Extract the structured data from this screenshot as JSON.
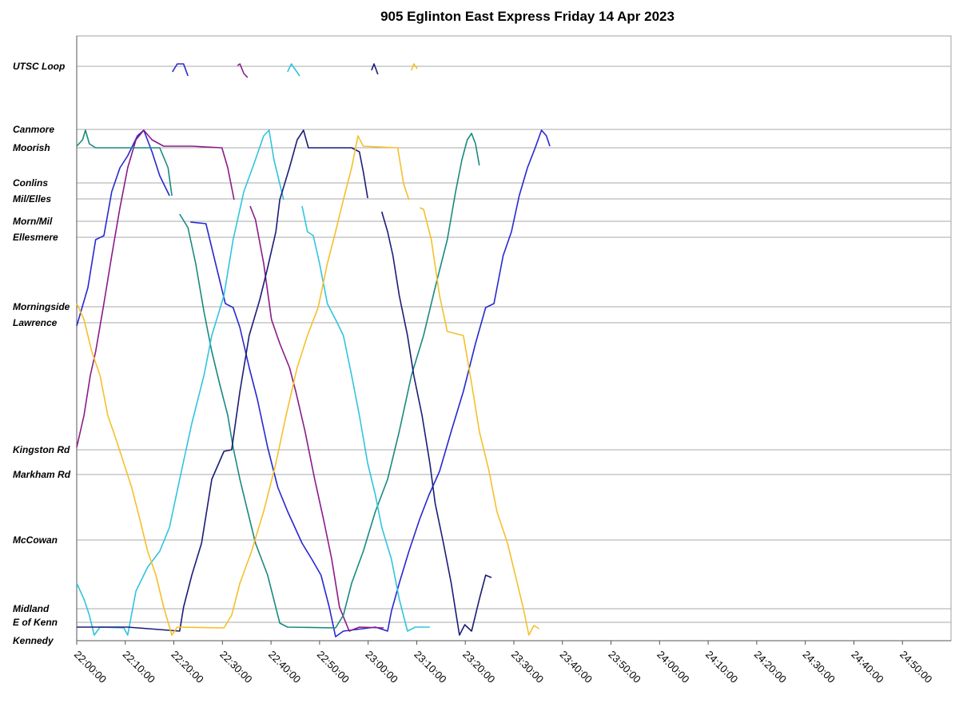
{
  "chart_data": {
    "type": "line",
    "title": "905 Eglinton East Express Friday 14 Apr 2023",
    "xlim": [
      1320,
      1500
    ],
    "xticks": [
      {
        "value": 1320,
        "label": "22:00:00"
      },
      {
        "value": 1330,
        "label": "22:10:00"
      },
      {
        "value": 1340,
        "label": "22:20:00"
      },
      {
        "value": 1350,
        "label": "22:30:00"
      },
      {
        "value": 1360,
        "label": "22:40:00"
      },
      {
        "value": 1370,
        "label": "22:50:00"
      },
      {
        "value": 1380,
        "label": "23:00:00"
      },
      {
        "value": 1390,
        "label": "23:10:00"
      },
      {
        "value": 1400,
        "label": "23:20:00"
      },
      {
        "value": 1410,
        "label": "23:30:00"
      },
      {
        "value": 1420,
        "label": "23:40:00"
      },
      {
        "value": 1430,
        "label": "23:50:00"
      },
      {
        "value": 1440,
        "label": "24:00:00"
      },
      {
        "value": 1450,
        "label": "24:10:00"
      },
      {
        "value": 1460,
        "label": "24:20:00"
      },
      {
        "value": 1470,
        "label": "24:30:00"
      },
      {
        "value": 1480,
        "label": "24:40:00"
      },
      {
        "value": 1490,
        "label": "24:50:00"
      }
    ],
    "ylim": [
      0,
      757
    ],
    "yticks": [
      {
        "value": 719,
        "label": "UTSC Loop"
      },
      {
        "value": 640,
        "label": "Canmore"
      },
      {
        "value": 617,
        "label": "Moorish"
      },
      {
        "value": 573,
        "label": "Conlins"
      },
      {
        "value": 553,
        "label": "Mil/Elles"
      },
      {
        "value": 525,
        "label": "Morn/Mil"
      },
      {
        "value": 505,
        "label": "Ellesmere"
      },
      {
        "value": 418,
        "label": "Morningside"
      },
      {
        "value": 398,
        "label": "Lawrence"
      },
      {
        "value": 239,
        "label": "Kingston Rd"
      },
      {
        "value": 208,
        "label": "Markham Rd"
      },
      {
        "value": 126,
        "label": "McCowan"
      },
      {
        "value": 40,
        "label": "Midland"
      },
      {
        "value": 23,
        "label": "E of Kenn"
      },
      {
        "value": 0,
        "label": "Kennedy"
      }
    ],
    "grid": true,
    "series": [
      {
        "color": "#2828d0",
        "x": [
          1320,
          1322.3,
          1323.9,
          1325.6,
          1327.2,
          1328.9,
          1330.5,
          1332.5,
          1333.8,
          1335.5,
          1337.1,
          1339.1,
          null,
          1339.7,
          1340.7,
          1342,
          1342.9,
          null,
          1343.4,
          1346.6,
          1348.6,
          1350.6,
          1352.2,
          1353.6,
          1355.5,
          1357.2,
          1359.3,
          1361.4,
          1363.4,
          1366.4,
          1368.4,
          1370.3,
          1372,
          1373.3,
          1374.9,
          1381.5,
          1384,
          1384.8,
          1386.4,
          1388.4,
          1390.6,
          1392.5,
          1394.7,
          1397.1,
          1399.6,
          1402.1,
          1404.2,
          1405.9,
          1407.8,
          1409.5,
          1411.1,
          1412.8,
          1414.4,
          1415.7,
          1416.7,
          1417.4
        ],
        "values": [
          394,
          442,
          502,
          507,
          562,
          592,
          607,
          632,
          639,
          612,
          582,
          557,
          null,
          712,
          722,
          722,
          707,
          null,
          524,
          522,
          472,
          422,
          417,
          392,
          342,
          302,
          242,
          192,
          162,
          122,
          102,
          82,
          42,
          5,
          12,
          17,
          12,
          37,
          72,
          112,
          152,
          182,
          212,
          262,
          312,
          372,
          417,
          422,
          482,
          512,
          557,
          592,
          617,
          639,
          632,
          619
        ]
      },
      {
        "color": "#8a1a8a",
        "x": [
          1320,
          1321.5,
          1322.8,
          1323.9,
          1325.6,
          1327.2,
          1328.9,
          1330.5,
          1332.2,
          1333.8,
          1335.5,
          1337.9,
          1343.7,
          1349.9,
          1351.1,
          1352.4,
          null,
          1353.1,
          1353.6,
          1354.4,
          1355.2,
          null,
          1355.7,
          1356.8,
          1358.5,
          1360.1,
          1361.8,
          1363.8,
          1365.1,
          1367,
          1369,
          1370.8,
          1372.5,
          1374.1,
          1376.1,
          1378.2,
          1383.2
        ],
        "values": [
          242,
          282,
          332,
          362,
          422,
          482,
          542,
          592,
          627,
          639,
          627,
          619,
          619,
          617,
          592,
          552,
          null,
          720,
          722,
          710,
          705,
          null,
          544,
          527,
          472,
          402,
          372,
          342,
          312,
          262,
          202,
          152,
          102,
          42,
          12,
          17,
          16
        ]
      },
      {
        "color": "#1a8a80",
        "x": [
          1320,
          1321.2,
          1321.8,
          1322.6,
          1323.9,
          1337.1,
          1338.8,
          1339.6,
          null,
          1341.2,
          1342.9,
          1344.5,
          1346.2,
          1347.8,
          1349.4,
          1351.1,
          1352.2,
          1353.6,
          1355.2,
          1356.8,
          1359.3,
          1361.8,
          1363.4,
          1373.3,
          1374.9,
          1376.6,
          1379,
          1381.5,
          1384,
          1386.4,
          1388.9,
          1391.4,
          1393.8,
          1396.3,
          1398,
          1399.3,
          1400.4,
          1401.3,
          1402.1,
          1402.9
        ],
        "values": [
          619,
          627,
          639,
          622,
          617,
          617,
          592,
          557,
          null,
          534,
          517,
          472,
          412,
          362,
          322,
          282,
          242,
          202,
          162,
          122,
          82,
          22,
          17,
          16,
          32,
          72,
          112,
          162,
          202,
          262,
          332,
          382,
          442,
          502,
          562,
          602,
          627,
          635,
          622,
          595
        ]
      },
      {
        "color": "#30c4e0",
        "x": [
          1320,
          1321.5,
          1322.6,
          1323.6,
          1324.8,
          1329.7,
          1330.5,
          1332.2,
          1334.6,
          1337.1,
          1339.1,
          1341.2,
          1343.7,
          1346.2,
          1347.8,
          1350.3,
          1352.2,
          1354.4,
          1356.5,
          1358.5,
          1359.6,
          1360.6,
          1362.6,
          null,
          1363.4,
          1364.2,
          1365.1,
          1365.9,
          null,
          1366.4,
          1367.5,
          1368.7,
          1370,
          1371.6,
          1373.3,
          1374.9,
          1376.6,
          1378.2,
          1379.9,
          1381.5,
          1382.8,
          1384.8,
          1386.4,
          1388.1,
          1389.7,
          1392.7
        ],
        "values": [
          72,
          52,
          32,
          7,
          17,
          16,
          7,
          62,
          92,
          112,
          142,
          202,
          272,
          332,
          382,
          432,
          502,
          562,
          597,
          632,
          639,
          602,
          552,
          null,
          712,
          722,
          714,
          707,
          null,
          544,
          512,
          507,
          472,
          422,
          402,
          382,
          332,
          282,
          222,
          182,
          142,
          102,
          52,
          12,
          17,
          17
        ]
      },
      {
        "color": "#1c1c78",
        "x": [
          1320,
          1330.5,
          1341.2,
          1342,
          1343.7,
          1345.7,
          1347.8,
          1350.3,
          1351.9,
          1353.6,
          1355.5,
          1357.7,
          1359.3,
          1361,
          1361.8,
          1363.8,
          1365.4,
          1366.7,
          1367.7,
          1376.6,
          1378.2,
          1379,
          1379.9,
          null,
          1380.7,
          1381.2,
          1381.7,
          1382,
          null,
          1382.8,
          1384,
          1385.1,
          1386.4,
          1388.1,
          1389.4,
          1391.1,
          1392.7,
          1393.8,
          1395.5,
          1397.1,
          1398.8,
          1399.9,
          1401.3,
          1402.9,
          1404.2,
          1405.4
        ],
        "values": [
          17,
          17,
          12,
          42,
          82,
          122,
          202,
          237,
          239,
          312,
          382,
          427,
          467,
          512,
          552,
          592,
          627,
          639,
          617,
          617,
          612,
          587,
          554,
          null,
          714,
          722,
          714,
          709,
          null,
          537,
          512,
          482,
          432,
          382,
          332,
          282,
          222,
          172,
          122,
          72,
          7,
          20,
          12,
          52,
          82,
          79
        ]
      },
      {
        "color": "#f5c02a",
        "x": [
          1320,
          1321.5,
          1323.1,
          1324.8,
          1326.4,
          1328.1,
          1329.7,
          1331.3,
          1333,
          1334.6,
          1336.3,
          1337.9,
          1339.6,
          1340.7,
          1350.3,
          1351.9,
          1353.6,
          1356,
          1358.5,
          1361,
          1363.1,
          1365.4,
          1367.5,
          1369.7,
          1371.6,
          1373.3,
          1374.9,
          1376.6,
          1377.9,
          1379,
          1386.1,
          1387.3,
          1388.4,
          null,
          1388.9,
          1389.4,
          1390.1,
          null,
          1390.6,
          1391.4,
          1393,
          1394.7,
          1396.3,
          1399.6,
          1401.3,
          1402.9,
          1404.9,
          1406.5,
          1408.7,
          1410.3,
          1411.9,
          1413.1,
          1414.1,
          1415.2
        ],
        "values": [
          422,
          402,
          362,
          332,
          282,
          252,
          222,
          192,
          152,
          112,
          82,
          42,
          7,
          17,
          16,
          32,
          72,
          112,
          162,
          222,
          282,
          342,
          382,
          417,
          472,
          512,
          552,
          592,
          632,
          619,
          617,
          572,
          552,
          null,
          714,
          722,
          716,
          null,
          542,
          540,
          502,
          432,
          387,
          382,
          322,
          262,
          212,
          162,
          122,
          82,
          42,
          7,
          19,
          15
        ]
      }
    ]
  }
}
